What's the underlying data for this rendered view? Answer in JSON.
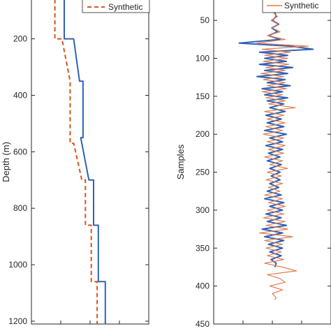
{
  "chart_data": [
    {
      "type": "line",
      "ylabel": "Depth (m)",
      "ylim": [
        60,
        1210
      ],
      "y_reversed": true,
      "yticks": [
        200,
        400,
        600,
        800,
        1000,
        1200
      ],
      "ytick_labels": [
        "200",
        "400",
        "600",
        "800",
        "1000",
        "1200"
      ],
      "legend": {
        "position": "top-right",
        "entries": [
          "Synthetic"
        ]
      },
      "colors": {
        "blue": "#2f62b8",
        "orange": "#d95319"
      },
      "series": [
        {
          "name": "",
          "style": "solid",
          "color": "#2f62b8",
          "points": [
            [
              0.28,
              60
            ],
            [
              0.28,
              200
            ],
            [
              0.36,
              200
            ],
            [
              0.41,
              350
            ],
            [
              0.44,
              350
            ],
            [
              0.44,
              550
            ],
            [
              0.42,
              550
            ],
            [
              0.49,
              700
            ],
            [
              0.53,
              700
            ],
            [
              0.53,
              860
            ],
            [
              0.57,
              860
            ],
            [
              0.57,
              1060
            ],
            [
              0.63,
              1060
            ],
            [
              0.63,
              1210
            ]
          ]
        },
        {
          "name": "Synthetic",
          "style": "dashed",
          "color": "#d95319",
          "points": [
            [
              0.2,
              60
            ],
            [
              0.2,
              200
            ],
            [
              0.26,
              200
            ],
            [
              0.33,
              350
            ],
            [
              0.33,
              570
            ],
            [
              0.36,
              570
            ],
            [
              0.43,
              700
            ],
            [
              0.46,
              700
            ],
            [
              0.46,
              860
            ],
            [
              0.51,
              860
            ],
            [
              0.51,
              1060
            ],
            [
              0.56,
              1060
            ],
            [
              0.56,
              1210
            ]
          ]
        }
      ]
    },
    {
      "type": "line",
      "ylabel": "Samples",
      "ylim": [
        25,
        450
      ],
      "y_reversed": true,
      "yticks": [
        50,
        100,
        150,
        200,
        250,
        300,
        350,
        400,
        450
      ],
      "ytick_labels": [
        "50",
        "100",
        "150",
        "200",
        "250",
        "300",
        "350",
        "400",
        "450"
      ],
      "legend": {
        "position": "top-right",
        "entries": [
          "Synthetic"
        ]
      },
      "colors": {
        "blue": "#2f62b8",
        "orange": "#e07b4a"
      },
      "series": [
        {
          "name": "",
          "color": "#2f62b8",
          "points": [
            [
              0.0,
              25
            ],
            [
              0.0,
              40
            ],
            [
              0.05,
              45
            ],
            [
              -0.1,
              50
            ],
            [
              0.15,
              55
            ],
            [
              -0.12,
              60
            ],
            [
              0.1,
              65
            ],
            [
              -0.25,
              70
            ],
            [
              0.2,
              75
            ],
            [
              -1.4,
              80
            ],
            [
              0.6,
              84
            ],
            [
              1.5,
              88
            ],
            [
              -0.6,
              92
            ],
            [
              0.5,
              96
            ],
            [
              -0.4,
              100
            ],
            [
              0.45,
              104
            ],
            [
              -0.6,
              108
            ],
            [
              0.7,
              112
            ],
            [
              -0.4,
              116
            ],
            [
              0.5,
              120
            ],
            [
              -0.7,
              124
            ],
            [
              0.4,
              128
            ],
            [
              -0.3,
              132
            ],
            [
              0.6,
              136
            ],
            [
              -0.5,
              140
            ],
            [
              0.3,
              144
            ],
            [
              -0.4,
              148
            ],
            [
              0.5,
              152
            ],
            [
              -0.3,
              156
            ],
            [
              0.35,
              160
            ],
            [
              -0.2,
              165
            ],
            [
              0.4,
              170
            ],
            [
              -0.35,
              175
            ],
            [
              0.25,
              180
            ],
            [
              -0.3,
              185
            ],
            [
              0.35,
              190
            ],
            [
              -0.4,
              195
            ],
            [
              0.45,
              200
            ],
            [
              -0.2,
              205
            ],
            [
              0.3,
              210
            ],
            [
              -0.35,
              215
            ],
            [
              0.3,
              220
            ],
            [
              -0.25,
              225
            ],
            [
              0.2,
              230
            ],
            [
              -0.3,
              235
            ],
            [
              0.25,
              240
            ],
            [
              -0.2,
              245
            ],
            [
              0.2,
              250
            ],
            [
              -0.15,
              255
            ],
            [
              0.2,
              260
            ],
            [
              -0.2,
              265
            ],
            [
              0.15,
              270
            ],
            [
              -0.3,
              275
            ],
            [
              0.25,
              280
            ],
            [
              -0.4,
              285
            ],
            [
              0.35,
              290
            ],
            [
              -0.2,
              295
            ],
            [
              0.3,
              300
            ],
            [
              -0.35,
              305
            ],
            [
              0.25,
              310
            ],
            [
              -0.3,
              315
            ],
            [
              0.45,
              320
            ],
            [
              -0.5,
              325
            ],
            [
              0.3,
              330
            ],
            [
              -0.4,
              335
            ],
            [
              0.35,
              340
            ],
            [
              -0.25,
              345
            ],
            [
              0.3,
              350
            ],
            [
              -0.2,
              355
            ],
            [
              0.25,
              360
            ],
            [
              -0.15,
              365
            ],
            [
              0.05,
              370
            ],
            [
              0.0,
              375
            ]
          ]
        },
        {
          "name": "Synthetic",
          "color": "#e07b4a",
          "points": [
            [
              0.0,
              25
            ],
            [
              0.02,
              35
            ],
            [
              -0.05,
              40
            ],
            [
              0.1,
              45
            ],
            [
              -0.15,
              50
            ],
            [
              0.12,
              55
            ],
            [
              -0.1,
              60
            ],
            [
              0.2,
              65
            ],
            [
              -0.3,
              70
            ],
            [
              0.4,
              75
            ],
            [
              -0.7,
              80
            ],
            [
              1.3,
              84
            ],
            [
              -0.5,
              88
            ],
            [
              0.6,
              92
            ],
            [
              -0.4,
              96
            ],
            [
              0.5,
              100
            ],
            [
              -0.45,
              104
            ],
            [
              0.55,
              108
            ],
            [
              -0.35,
              112
            ],
            [
              0.4,
              116
            ],
            [
              -0.55,
              120
            ],
            [
              0.35,
              124
            ],
            [
              -0.45,
              128
            ],
            [
              0.4,
              132
            ],
            [
              -0.3,
              136
            ],
            [
              0.45,
              140
            ],
            [
              -0.5,
              144
            ],
            [
              0.3,
              148
            ],
            [
              -0.35,
              152
            ],
            [
              0.4,
              156
            ],
            [
              -0.25,
              160
            ],
            [
              0.8,
              165
            ],
            [
              -0.4,
              170
            ],
            [
              0.35,
              175
            ],
            [
              -0.3,
              180
            ],
            [
              0.4,
              185
            ],
            [
              -0.35,
              190
            ],
            [
              0.3,
              195
            ],
            [
              -0.45,
              200
            ],
            [
              0.35,
              205
            ],
            [
              -0.3,
              210
            ],
            [
              0.4,
              215
            ],
            [
              -0.25,
              220
            ],
            [
              0.35,
              225
            ],
            [
              -0.4,
              230
            ],
            [
              0.3,
              235
            ],
            [
              -0.2,
              240
            ],
            [
              0.5,
              245
            ],
            [
              -0.3,
              250
            ],
            [
              0.25,
              255
            ],
            [
              -0.35,
              260
            ],
            [
              0.3,
              265
            ],
            [
              -0.25,
              270
            ],
            [
              0.2,
              275
            ],
            [
              -0.4,
              280
            ],
            [
              0.3,
              285
            ],
            [
              -0.25,
              290
            ],
            [
              0.4,
              295
            ],
            [
              -0.3,
              300
            ],
            [
              0.35,
              305
            ],
            [
              -0.45,
              310
            ],
            [
              0.4,
              315
            ],
            [
              -0.35,
              320
            ],
            [
              0.5,
              325
            ],
            [
              -0.6,
              330
            ],
            [
              0.7,
              335
            ],
            [
              -0.4,
              340
            ],
            [
              0.3,
              345
            ],
            [
              -0.35,
              350
            ],
            [
              0.25,
              355
            ],
            [
              -0.3,
              360
            ],
            [
              0.35,
              365
            ],
            [
              -0.4,
              370
            ],
            [
              0.3,
              375
            ],
            [
              0.85,
              380
            ],
            [
              -0.3,
              385
            ],
            [
              0.2,
              390
            ],
            [
              0.4,
              395
            ],
            [
              -0.2,
              400
            ],
            [
              0.3,
              405
            ],
            [
              -0.1,
              410
            ],
            [
              0.05,
              415
            ],
            [
              0.0,
              418
            ]
          ]
        }
      ]
    }
  ]
}
